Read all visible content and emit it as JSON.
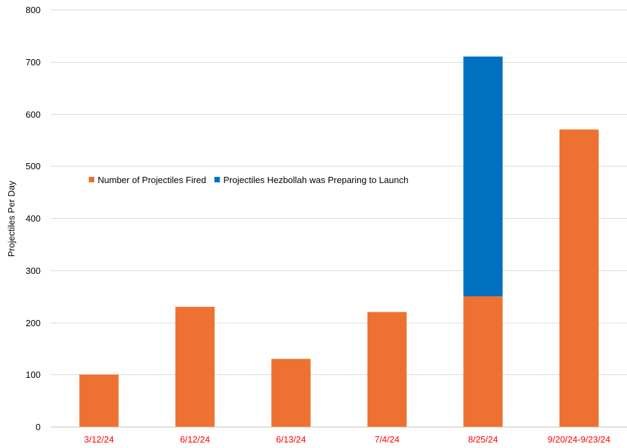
{
  "chart_data": {
    "type": "bar",
    "stacked": true,
    "categories": [
      "3/12/24",
      "6/12/24",
      "6/13/24",
      "7/4/24",
      "8/25/24",
      "9/20/24-9/23/24"
    ],
    "series": [
      {
        "name": "Number of Projectiles Fired",
        "values": [
          100,
          230,
          130,
          220,
          250,
          570
        ],
        "color": "#ED7131"
      },
      {
        "name": "Projectiles Hezbollah was Preparing to Launch",
        "values": [
          0,
          0,
          0,
          0,
          460,
          0
        ],
        "color": "#0070C0"
      }
    ],
    "title": "",
    "xlabel": "",
    "ylabel": "Projectiles Per Day",
    "ylim": [
      0,
      800
    ],
    "yticks": [
      0,
      100,
      200,
      300,
      400,
      500,
      600,
      700,
      800
    ],
    "grid": true,
    "legend_position": "middle-left",
    "category_label_color": "#FF0000"
  }
}
